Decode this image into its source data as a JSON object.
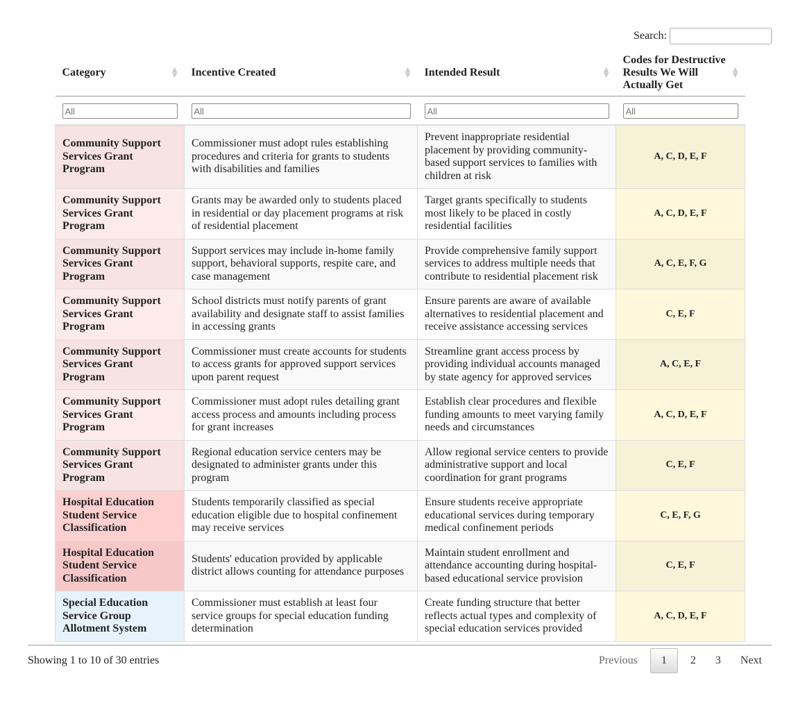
{
  "search": {
    "label": "Search:",
    "value": ""
  },
  "columns": [
    "Category",
    "Incentive Created",
    "Intended Result",
    "Codes for Destructive Results We Will Actually Get"
  ],
  "filters": [
    "All",
    "All",
    "All",
    "All"
  ],
  "colors": {
    "community": "#fde8e8",
    "hospital": "#ffd0d0",
    "special": "#e6f3fc",
    "codes": "#fff8dc"
  },
  "rows": [
    {
      "category": "Community Support Services Grant Program",
      "incentive": "Commissioner must adopt rules establishing procedures and criteria for grants to students with disabilities and families",
      "result": "Prevent inappropriate residential placement by providing community-based support services to families with children at risk",
      "codes": "A, C, D, E, F",
      "catColor": "#f7e3e3",
      "codeColor": "#f7f1d8"
    },
    {
      "category": "Community Support Services Grant Program",
      "incentive": "Grants may be awarded only to students placed in residential or day placement programs at risk of residential placement",
      "result": "Target grants specifically to students most likely to be placed in costly residential facilities",
      "codes": "A, C, D, E, F",
      "catColor": "#fdebeb",
      "codeColor": "#fff8dc"
    },
    {
      "category": "Community Support Services Grant Program",
      "incentive": "Support services may include in-home family support, behavioral supports, respite care, and case management",
      "result": "Provide comprehensive family support services to address multiple needs that contribute to residential placement risk",
      "codes": "A, C, E, F, G",
      "catColor": "#f7e3e3",
      "codeColor": "#f7f1d8"
    },
    {
      "category": "Community Support Services Grant Program",
      "incentive": "School districts must notify parents of grant availability and designate staff to assist families in accessing grants",
      "result": "Ensure parents are aware of available alternatives to residential placement and receive assistance accessing services",
      "codes": "C, E, F",
      "catColor": "#fdebeb",
      "codeColor": "#fff8dc"
    },
    {
      "category": "Community Support Services Grant Program",
      "incentive": "Commissioner must create accounts for students to access grants for approved support services upon parent request",
      "result": "Streamline grant access process by providing individual accounts managed by state agency for approved services",
      "codes": "A, C, E, F",
      "catColor": "#f7e3e3",
      "codeColor": "#f7f1d8"
    },
    {
      "category": "Community Support Services Grant Program",
      "incentive": "Commissioner must adopt rules detailing grant access process and amounts including process for grant increases",
      "result": "Establish clear procedures and flexible funding amounts to meet varying family needs and circumstances",
      "codes": "A, C, D, E, F",
      "catColor": "#fdebeb",
      "codeColor": "#fff8dc"
    },
    {
      "category": "Community Support Services Grant Program",
      "incentive": "Regional education service centers may be designated to administer grants under this program",
      "result": "Allow regional service centers to provide administrative support and local coordination for grant programs",
      "codes": "C, E, F",
      "catColor": "#f7e3e3",
      "codeColor": "#f7f1d8"
    },
    {
      "category": "Hospital Education Student Service Classification",
      "incentive": "Students temporarily classified as special education eligible due to hospital confinement may receive services",
      "result": "Ensure students receive appropriate educational services during temporary medical confinement periods",
      "codes": "C, E, F, G",
      "catColor": "#ffd0d0",
      "codeColor": "#fff8dc"
    },
    {
      "category": "Hospital Education Student Service Classification",
      "incentive": "Students' education provided by applicable district allows counting for attendance purposes",
      "result": "Maintain student enrollment and attendance accounting during hospital-based educational service provision",
      "codes": "C, E, F",
      "catColor": "#f7c8c8",
      "codeColor": "#f7f1d8"
    },
    {
      "category": "Special Education Service Group Allotment System",
      "incentive": "Commissioner must establish at least four service groups for special education funding determination",
      "result": "Create funding structure that better reflects actual types and complexity of special education services provided",
      "codes": "A, C, D, E, F",
      "catColor": "#e6f3fc",
      "codeColor": "#fff8dc"
    }
  ],
  "footer": {
    "info": "Showing 1 to 10 of 30 entries",
    "previous": "Previous",
    "pages": [
      "1",
      "2",
      "3"
    ],
    "next": "Next"
  }
}
